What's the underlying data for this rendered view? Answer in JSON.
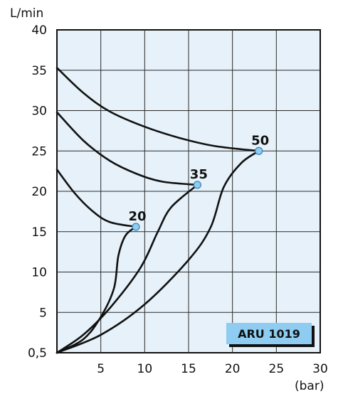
{
  "chart_data": {
    "type": "line",
    "ylabel": "L/min",
    "xlabel": "(bar)",
    "xlim": [
      0,
      30
    ],
    "ylim": [
      0,
      40
    ],
    "x_ticks": [
      5,
      10,
      15,
      20,
      25,
      30
    ],
    "y_ticks": [
      {
        "value": 0.5,
        "label": "0,5"
      },
      {
        "value": 5,
        "label": "5"
      },
      {
        "value": 10,
        "label": "10"
      },
      {
        "value": 15,
        "label": "15"
      },
      {
        "value": 20,
        "label": "20"
      },
      {
        "value": 25,
        "label": "25"
      },
      {
        "value": 30,
        "label": "30"
      },
      {
        "value": 35,
        "label": "35"
      },
      {
        "value": 40,
        "label": "40"
      }
    ],
    "grid": true,
    "badge": "ARU 1019",
    "colors": {
      "plot_bg": "#e6f1f9",
      "grid": "#2a2a2a",
      "curve": "#111111",
      "marker": "#8ecdf1",
      "badge": "#8ecdf1"
    },
    "series": [
      {
        "name": "20",
        "upper": [
          [
            0,
            22.7
          ],
          [
            2,
            19.8
          ],
          [
            4,
            17.6
          ],
          [
            6,
            16.2
          ],
          [
            9,
            15.6
          ]
        ],
        "lower": [
          [
            0,
            0.5
          ],
          [
            3,
            2.0
          ],
          [
            5,
            4.5
          ],
          [
            6.5,
            8.0
          ],
          [
            7,
            12.0
          ],
          [
            7.8,
            14.5
          ],
          [
            9,
            15.6
          ]
        ],
        "point": [
          9,
          15.6
        ]
      },
      {
        "name": "35",
        "upper": [
          [
            0,
            29.8
          ],
          [
            3,
            26.3
          ],
          [
            6,
            23.8
          ],
          [
            9,
            22.2
          ],
          [
            12,
            21.2
          ],
          [
            16,
            20.8
          ]
        ],
        "lower": [
          [
            0,
            0.5
          ],
          [
            3,
            2.5
          ],
          [
            6,
            5.5
          ],
          [
            9.5,
            10.5
          ],
          [
            11.5,
            15.0
          ],
          [
            13,
            18.0
          ],
          [
            16,
            20.8
          ]
        ],
        "point": [
          16,
          20.8
        ]
      },
      {
        "name": "50",
        "upper": [
          [
            0,
            35.3
          ],
          [
            3,
            32.2
          ],
          [
            6,
            29.9
          ],
          [
            10,
            28.0
          ],
          [
            14,
            26.6
          ],
          [
            18,
            25.6
          ],
          [
            23,
            25.0
          ]
        ],
        "lower": [
          [
            0,
            0.5
          ],
          [
            5,
            2.5
          ],
          [
            10,
            6.0
          ],
          [
            15,
            11.5
          ],
          [
            17.5,
            15.5
          ],
          [
            19,
            20.5
          ],
          [
            21,
            23.5
          ],
          [
            23,
            25.0
          ]
        ],
        "point": [
          23,
          25.0
        ]
      }
    ]
  }
}
